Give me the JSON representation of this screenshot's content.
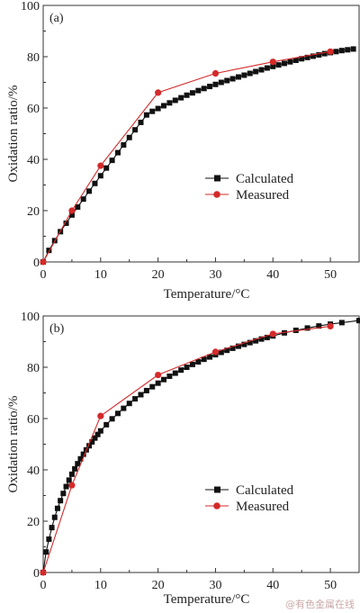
{
  "watermark": "@有色金属在线",
  "colors": {
    "calculated": "#111111",
    "measured": "#d42a2a",
    "axis": "#333333"
  },
  "chart_data": [
    {
      "type": "line",
      "panel_label": "(a)",
      "xlabel": "Temperature/°C",
      "ylabel": "Oxidation ratio/%",
      "xlim": [
        0,
        55
      ],
      "ylim": [
        0,
        100
      ],
      "xticks": [
        0,
        10,
        20,
        30,
        40,
        50
      ],
      "yticks": [
        0,
        20,
        40,
        60,
        80,
        100
      ],
      "legend_position": "center-right",
      "series": [
        {
          "name": "Calculated",
          "marker": "square",
          "x": [
            0,
            1,
            2,
            3,
            4,
            5,
            6,
            7,
            8,
            9,
            10,
            11,
            12,
            13,
            14,
            15,
            16,
            17,
            18,
            19,
            20,
            21,
            22,
            23,
            24,
            25,
            26,
            27,
            28,
            29,
            30,
            31,
            32,
            33,
            34,
            35,
            36,
            37,
            38,
            39,
            40,
            41,
            42,
            43,
            44,
            45,
            46,
            47,
            48,
            49,
            50,
            51,
            52,
            53,
            54
          ],
          "y": [
            0,
            4.5,
            8.3,
            11.8,
            15.1,
            18.3,
            21.4,
            24.5,
            27.6,
            30.6,
            33.6,
            36.6,
            39.6,
            42.6,
            45.6,
            48.5,
            51.5,
            54.4,
            57.3,
            58.7,
            59.8,
            60.9,
            62,
            63,
            64,
            65,
            65.9,
            66.8,
            67.6,
            68.4,
            69.2,
            70,
            70.7,
            71.4,
            72.1,
            72.8,
            73.5,
            74.2,
            74.9,
            75.6,
            76.2,
            76.8,
            77.4,
            78,
            78.6,
            79.2,
            79.7,
            80.2,
            80.7,
            81.2,
            81.6,
            82,
            82.4,
            82.7,
            83
          ]
        },
        {
          "name": "Measured",
          "marker": "circle",
          "x": [
            0,
            5,
            10,
            20,
            30,
            40,
            50
          ],
          "y": [
            0,
            20,
            37.5,
            66,
            73.5,
            78,
            82
          ]
        }
      ]
    },
    {
      "type": "line",
      "panel_label": "(b)",
      "xlabel": "Temperature/°C",
      "ylabel": "Oxidation ratio/%",
      "xlim": [
        0,
        55
      ],
      "ylim": [
        0,
        100
      ],
      "xticks": [
        0,
        10,
        20,
        30,
        40,
        50
      ],
      "yticks": [
        0,
        20,
        40,
        60,
        80,
        100
      ],
      "legend_position": "bottom-right",
      "series": [
        {
          "name": "Calculated",
          "marker": "square",
          "x": [
            0,
            0.5,
            1,
            1.5,
            2,
            2.5,
            3,
            3.5,
            4,
            4.5,
            5,
            5.5,
            6,
            6.5,
            7,
            7.5,
            8,
            8.5,
            9,
            9.5,
            10,
            11,
            12,
            13,
            14,
            15,
            16,
            17,
            18,
            19,
            20,
            21,
            22,
            23,
            24,
            25,
            26,
            27,
            28,
            29,
            30,
            31,
            32,
            33,
            34,
            35,
            36,
            37,
            38,
            39,
            40,
            42,
            44,
            46,
            48,
            50,
            52,
            55
          ],
          "y": [
            0,
            8,
            13,
            17.5,
            21.5,
            25,
            28,
            30.8,
            33.5,
            36,
            38.3,
            40.4,
            42.4,
            44.3,
            46.1,
            47.8,
            49.4,
            50.9,
            52.4,
            53.8,
            55.2,
            57.6,
            59.9,
            62,
            64,
            65.9,
            67.7,
            69.3,
            70.9,
            72.4,
            73.8,
            75.2,
            76.5,
            77.7,
            78.9,
            80,
            81.1,
            82.1,
            83.1,
            84,
            84.9,
            85.8,
            86.6,
            87.4,
            88.2,
            88.9,
            89.6,
            90.3,
            91,
            91.6,
            92.2,
            93.4,
            94.4,
            95.3,
            96.1,
            96.8,
            97.4,
            98.2
          ]
        },
        {
          "name": "Measured",
          "marker": "circle",
          "x": [
            0,
            5,
            10,
            20,
            30,
            40,
            50
          ],
          "y": [
            0,
            34,
            61,
            77,
            86,
            93,
            96
          ]
        }
      ]
    }
  ]
}
